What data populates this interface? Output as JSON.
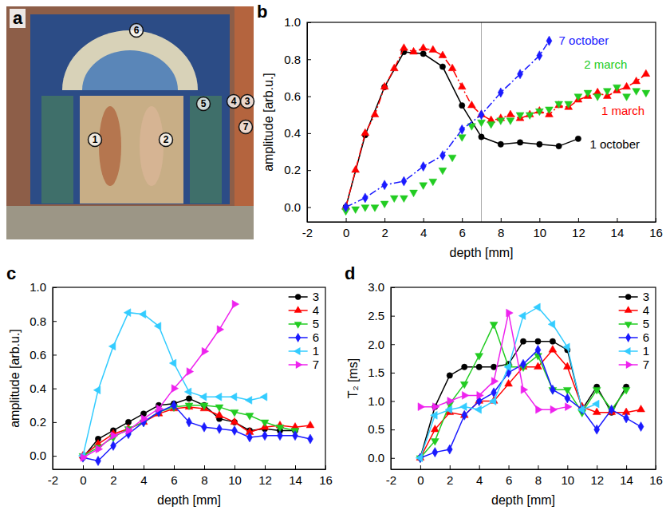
{
  "panel_a": {
    "letter": "a",
    "markers": [
      "1",
      "2",
      "3",
      "4",
      "5",
      "6",
      "7"
    ]
  },
  "chart_data": [
    {
      "type": "line",
      "title": "b",
      "x_label": "depth [mm]",
      "y_label": "amplitude [arb.u.]",
      "xlim": [
        -2,
        16
      ],
      "xticks": [
        -2,
        0,
        2,
        4,
        6,
        8,
        10,
        12,
        14,
        16
      ],
      "ylim": [
        -0.08,
        1.0
      ],
      "yticks": [
        {
          "value": 0,
          "label": "0.0"
        },
        {
          "value": 0.2,
          "label": "0.2"
        },
        {
          "value": 0.4,
          "label": "0.4"
        },
        {
          "value": 0.6,
          "label": "0.6"
        },
        {
          "value": 0.8,
          "label": "0.8"
        },
        {
          "value": 1.0,
          "label": "1.0"
        }
      ],
      "vline": 7,
      "legend": "inline",
      "series": [
        {
          "name": "1 october",
          "color": "#000000",
          "marker": "circle",
          "line_style": "solid",
          "x": [
            0,
            1,
            2,
            3,
            4,
            5,
            6,
            7,
            8,
            9,
            10,
            11,
            12
          ],
          "values": [
            0,
            0.39,
            0.65,
            0.84,
            0.83,
            0.76,
            0.55,
            0.38,
            0.34,
            0.35,
            0.34,
            0.33,
            0.37
          ]
        },
        {
          "name": "1 march",
          "color": "#ff0000",
          "marker": "triangle-up",
          "line_style": "dash-dot",
          "x": [
            0,
            0.5,
            1,
            1.5,
            2,
            2.5,
            3,
            3.5,
            4,
            4.5,
            5,
            5.5,
            6,
            6.5,
            7,
            7.5,
            8,
            8.5,
            9,
            9.5,
            10,
            10.5,
            11,
            11.5,
            12,
            12.5,
            13,
            13.5,
            14,
            14.5,
            15,
            15.5
          ],
          "values": [
            0,
            0.2,
            0.4,
            0.5,
            0.65,
            0.75,
            0.86,
            0.84,
            0.86,
            0.85,
            0.82,
            0.75,
            0.65,
            0.55,
            0.5,
            0.47,
            0.48,
            0.5,
            0.48,
            0.5,
            0.52,
            0.5,
            0.55,
            0.54,
            0.58,
            0.6,
            0.62,
            0.6,
            0.63,
            0.65,
            0.68,
            0.72
          ]
        },
        {
          "name": "2 march",
          "color": "#22cc22",
          "marker": "triangle-down",
          "line_style": "none",
          "x": [
            0,
            0.5,
            1,
            1.5,
            2,
            2.5,
            3,
            3.5,
            4,
            4.5,
            5,
            5.5,
            6,
            6.5,
            7,
            7.5,
            8,
            8.5,
            9,
            9.5,
            10,
            10.5,
            11,
            11.5,
            12,
            12.5,
            13,
            13.5,
            14,
            14.5,
            15,
            15.5
          ],
          "values": [
            -0.02,
            -0.01,
            0,
            0,
            0.02,
            0.05,
            0.05,
            0.08,
            0.12,
            0.14,
            0.2,
            0.27,
            0.38,
            0.44,
            0.46,
            0.45,
            0.47,
            0.47,
            0.5,
            0.5,
            0.52,
            0.53,
            0.56,
            0.56,
            0.6,
            0.62,
            0.6,
            0.63,
            0.65,
            0.6,
            0.63,
            0.62
          ]
        },
        {
          "name": "7 october",
          "color": "#1a1aff",
          "marker": "diamond",
          "line_style": "dash-dot",
          "x": [
            0,
            1,
            2,
            3,
            4,
            5,
            6,
            7,
            8,
            9,
            10,
            10.5
          ],
          "values": [
            0,
            0.05,
            0.12,
            0.14,
            0.22,
            0.28,
            0.42,
            0.5,
            0.62,
            0.72,
            0.82,
            0.9
          ]
        }
      ]
    },
    {
      "type": "line",
      "title": "c",
      "x_label": "depth [mm]",
      "y_label": "amplitude [arb.u.]",
      "xlim": [
        -2,
        16
      ],
      "xticks": [
        -2,
        0,
        2,
        4,
        6,
        8,
        10,
        12,
        14,
        16
      ],
      "ylim": [
        -0.08,
        1.0
      ],
      "yticks": [
        {
          "value": 0,
          "label": "0.0"
        },
        {
          "value": 0.2,
          "label": "0.2"
        },
        {
          "value": 0.4,
          "label": "0.4"
        },
        {
          "value": 0.6,
          "label": "0.6"
        },
        {
          "value": 0.8,
          "label": "0.8"
        },
        {
          "value": 1.0,
          "label": "1.0"
        }
      ],
      "legend": "upper right",
      "series": [
        {
          "name": "3",
          "color": "#000000",
          "marker": "circle",
          "line_style": "solid",
          "x": [
            0,
            1,
            2,
            3,
            4,
            5,
            6,
            7,
            8,
            9,
            10,
            11,
            12,
            13,
            14
          ],
          "values": [
            -0.01,
            0.1,
            0.15,
            0.2,
            0.25,
            0.3,
            0.31,
            0.34,
            0.3,
            0.22,
            0.2,
            0.15,
            0.16,
            0.15,
            0.15
          ]
        },
        {
          "name": "4",
          "color": "#ff0000",
          "marker": "triangle-up",
          "line_style": "solid",
          "x": [
            0,
            1,
            2,
            3,
            4,
            5,
            6,
            7,
            8,
            9,
            10,
            11,
            12,
            13,
            14,
            15
          ],
          "values": [
            0,
            0.07,
            0.13,
            0.16,
            0.2,
            0.25,
            0.28,
            0.29,
            0.28,
            0.24,
            0.2,
            0.14,
            0.17,
            0.18,
            0.17,
            0.18
          ]
        },
        {
          "name": "5",
          "color": "#22cc22",
          "marker": "triangle-down",
          "line_style": "solid",
          "x": [
            0,
            1,
            2,
            3,
            4,
            5,
            6,
            7,
            8,
            9,
            10,
            11,
            12,
            13,
            14
          ],
          "values": [
            0,
            0.05,
            0.11,
            0.16,
            0.2,
            0.26,
            0.29,
            0.3,
            0.3,
            0.29,
            0.26,
            0.24,
            0.2,
            0.17,
            0.15
          ]
        },
        {
          "name": "6",
          "color": "#1a1aff",
          "marker": "diamond",
          "line_style": "solid",
          "x": [
            0,
            1,
            2,
            3,
            4,
            5,
            6,
            7,
            8,
            9,
            10,
            11,
            12,
            13,
            14,
            15
          ],
          "values": [
            -0.01,
            -0.03,
            0.06,
            0.13,
            0.2,
            0.26,
            0.3,
            0.2,
            0.17,
            0.16,
            0.15,
            0.11,
            0.12,
            0.12,
            0.12,
            0.1
          ]
        },
        {
          "name": "1",
          "color": "#33ccff",
          "marker": "triangle-left",
          "line_style": "solid",
          "x": [
            0,
            1,
            2,
            3,
            4,
            5,
            6,
            7,
            8,
            9,
            10,
            11,
            12
          ],
          "values": [
            0,
            0.39,
            0.65,
            0.85,
            0.84,
            0.77,
            0.55,
            0.38,
            0.35,
            0.35,
            0.35,
            0.33,
            0.35
          ]
        },
        {
          "name": "7",
          "color": "#ee22ee",
          "marker": "triangle-right",
          "line_style": "solid",
          "x": [
            0,
            1,
            2,
            3,
            4,
            5,
            6,
            7,
            8,
            9,
            10
          ],
          "values": [
            -0.01,
            0.04,
            0.12,
            0.15,
            0.22,
            0.28,
            0.4,
            0.5,
            0.62,
            0.75,
            0.9
          ]
        }
      ]
    },
    {
      "type": "line",
      "title": "d",
      "x_label": "depth [mm]",
      "y_label": "T₂ [ms]",
      "xlim": [
        -2,
        16
      ],
      "xticks": [
        -2,
        0,
        2,
        4,
        6,
        8,
        10,
        12,
        14,
        16
      ],
      "ylim": [
        -0.2,
        3.0
      ],
      "yticks": [
        {
          "value": 0,
          "label": "0.0"
        },
        {
          "value": 0.5,
          "label": "0.5"
        },
        {
          "value": 1.0,
          "label": "1.0"
        },
        {
          "value": 1.5,
          "label": "1.5"
        },
        {
          "value": 2.0,
          "label": "2.0"
        },
        {
          "value": 2.5,
          "label": "2.5"
        },
        {
          "value": 3.0,
          "label": "3.0"
        }
      ],
      "legend": "upper right",
      "series": [
        {
          "name": "3",
          "color": "#000000",
          "marker": "circle",
          "line_style": "solid",
          "x": [
            0,
            1,
            2,
            3,
            4,
            5,
            6,
            7,
            8,
            9,
            10,
            11,
            12,
            13,
            14
          ],
          "values": [
            0,
            0.9,
            1.45,
            1.6,
            1.6,
            1.6,
            1.65,
            2.05,
            2.05,
            2.05,
            1.9,
            0.85,
            1.25,
            0.8,
            1.25
          ]
        },
        {
          "name": "4",
          "color": "#ff0000",
          "marker": "triangle-up",
          "line_style": "solid",
          "x": [
            0,
            1,
            2,
            3,
            4,
            5,
            6,
            7,
            8,
            9,
            10,
            11,
            12,
            13,
            14,
            15
          ],
          "values": [
            0,
            0.5,
            0.8,
            0.75,
            1.0,
            1.0,
            1.3,
            1.6,
            1.6,
            1.9,
            1.6,
            0.9,
            0.8,
            0.8,
            0.8,
            0.85
          ]
        },
        {
          "name": "5",
          "color": "#22cc22",
          "marker": "triangle-down",
          "line_style": "solid",
          "x": [
            0,
            1,
            2,
            3,
            4,
            5,
            6,
            7,
            8,
            9,
            10,
            11,
            12,
            13,
            14
          ],
          "values": [
            0,
            0.3,
            0.95,
            1.3,
            1.8,
            2.35,
            1.6,
            1.6,
            1.8,
            1.2,
            1.2,
            0.8,
            1.2,
            0.85,
            1.2
          ]
        },
        {
          "name": "6",
          "color": "#1a1aff",
          "marker": "diamond",
          "line_style": "solid",
          "x": [
            0,
            1,
            2,
            3,
            4,
            5,
            6,
            7,
            8,
            9,
            10,
            11,
            12,
            13,
            14,
            15
          ],
          "values": [
            0,
            0.1,
            0.15,
            0.75,
            1.0,
            1.15,
            1.5,
            1.65,
            1.9,
            1.2,
            1.05,
            0.85,
            0.5,
            0.85,
            0.7,
            0.55
          ]
        },
        {
          "name": "1",
          "color": "#33ccff",
          "marker": "triangle-left",
          "line_style": "solid",
          "x": [
            0,
            1,
            2,
            3,
            4,
            5,
            6,
            7,
            8,
            9,
            10,
            11,
            12
          ],
          "values": [
            0,
            0.75,
            0.85,
            0.9,
            0.85,
            1.0,
            1.6,
            2.5,
            2.65,
            2.35,
            1.95,
            0.85,
            0.95
          ]
        },
        {
          "name": "7",
          "color": "#ee22ee",
          "marker": "triangle-right",
          "line_style": "solid",
          "x": [
            0,
            1,
            2,
            3,
            4,
            5,
            6,
            7,
            8,
            9,
            10
          ],
          "values": [
            0.9,
            0.9,
            1.0,
            1.1,
            1.1,
            1.35,
            2.55,
            1.2,
            0.85,
            0.85,
            0.9
          ]
        }
      ]
    }
  ]
}
